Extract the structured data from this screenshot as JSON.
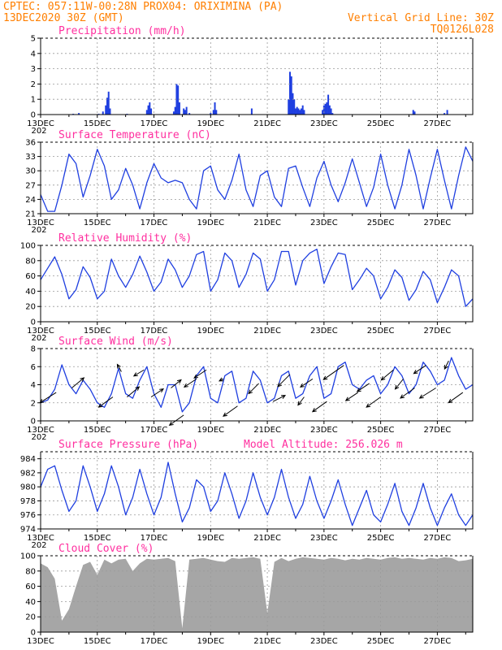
{
  "header": {
    "line1_left": "CPTEC:  057:11W-00:28N  PROX04: ORIXIMINA (PA)",
    "line2_left": "13DEC2020 30Z (GMT)",
    "line2_right": "Vertical Grid Line: 30Z",
    "line3_right": "TQ0126L028"
  },
  "x_axis": {
    "tick_labels": [
      "13DEC",
      "15DEC",
      "17DEC",
      "19DEC",
      "21DEC",
      "23DEC",
      "25DEC",
      "27DEC"
    ],
    "tick_days": [
      0,
      2,
      4,
      6,
      8,
      10,
      12,
      14
    ],
    "range_days": [
      0,
      15.25
    ],
    "year_fragment": "202"
  },
  "colors": {
    "series": "#1f3fe0",
    "bars": "#1f3fe0",
    "cloud": "#a6a6a6",
    "title": "#ff2f9f",
    "header": "#ff7f00"
  },
  "chart_data": [
    {
      "type": "bar",
      "title": "Precipitation (mm/h)",
      "ylim": [
        0,
        5
      ],
      "yticks": [
        0,
        1,
        2,
        3,
        4,
        5
      ],
      "grid": true,
      "values_by_day": [
        [
          1.15,
          0.05
        ],
        [
          1.35,
          0.1
        ],
        [
          2.05,
          0.05
        ],
        [
          2.2,
          0.2
        ],
        [
          2.3,
          0.6
        ],
        [
          2.35,
          1.1
        ],
        [
          2.4,
          1.5
        ],
        [
          2.45,
          0.4
        ],
        [
          3.05,
          0.05
        ],
        [
          3.75,
          0.3
        ],
        [
          3.8,
          0.6
        ],
        [
          3.85,
          0.8
        ],
        [
          3.9,
          0.4
        ],
        [
          4.7,
          0.2
        ],
        [
          4.75,
          0.5
        ],
        [
          4.8,
          2.0
        ],
        [
          4.85,
          1.9
        ],
        [
          4.9,
          0.8
        ],
        [
          5.05,
          0.4
        ],
        [
          5.1,
          0.3
        ],
        [
          5.15,
          0.5
        ],
        [
          5.25,
          0.1
        ],
        [
          6.0,
          0.1
        ],
        [
          6.1,
          0.3
        ],
        [
          6.15,
          0.8
        ],
        [
          6.2,
          0.3
        ],
        [
          7.45,
          0.4
        ],
        [
          8.75,
          1.0
        ],
        [
          8.8,
          2.8
        ],
        [
          8.85,
          2.5
        ],
        [
          8.9,
          1.4
        ],
        [
          8.95,
          1.0
        ],
        [
          9.0,
          0.4
        ],
        [
          9.05,
          0.5
        ],
        [
          9.1,
          0.4
        ],
        [
          9.15,
          0.3
        ],
        [
          9.2,
          0.4
        ],
        [
          9.25,
          0.6
        ],
        [
          9.3,
          0.3
        ],
        [
          9.95,
          0.3
        ],
        [
          10.0,
          0.6
        ],
        [
          10.05,
          0.7
        ],
        [
          10.1,
          0.8
        ],
        [
          10.15,
          1.3
        ],
        [
          10.2,
          0.6
        ],
        [
          10.25,
          0.4
        ],
        [
          10.3,
          0.1
        ],
        [
          13.15,
          0.3
        ],
        [
          13.2,
          0.2
        ],
        [
          14.25,
          0.1
        ],
        [
          14.35,
          0.3
        ]
      ]
    },
    {
      "type": "line",
      "title": "Surface Temperature (nC)",
      "ylim": [
        21,
        36
      ],
      "yticks": [
        21,
        24,
        27,
        30,
        33,
        36
      ],
      "grid": true,
      "x_days": [
        0,
        0.25,
        0.5,
        0.75,
        1,
        1.25,
        1.5,
        1.75,
        2,
        2.25,
        2.5,
        2.75,
        3,
        3.25,
        3.5,
        3.75,
        4,
        4.25,
        4.5,
        4.75,
        5,
        5.25,
        5.5,
        5.75,
        6,
        6.25,
        6.5,
        6.75,
        7,
        7.25,
        7.5,
        7.75,
        8,
        8.25,
        8.5,
        8.75,
        9,
        9.25,
        9.5,
        9.75,
        10,
        10.25,
        10.5,
        10.75,
        11,
        11.25,
        11.5,
        11.75,
        12,
        12.25,
        12.5,
        12.75,
        13,
        13.25,
        13.5,
        13.75,
        14,
        14.25,
        14.5,
        14.75,
        15,
        15.25
      ],
      "values": [
        25,
        21.5,
        21.5,
        27,
        33.5,
        31.5,
        24.5,
        29,
        34.5,
        31,
        24,
        26,
        30.5,
        27,
        22,
        27.5,
        31.5,
        28.5,
        27.5,
        28,
        27.5,
        24,
        22,
        30,
        31,
        26,
        24,
        28,
        33.5,
        26,
        22.5,
        29,
        30,
        24.5,
        22.5,
        30.5,
        31,
        26.5,
        22.5,
        28.5,
        32,
        27,
        23.5,
        27.5,
        32.5,
        27.5,
        22.5,
        26.5,
        33.5,
        27,
        22,
        27,
        34.5,
        29,
        22,
        28.5,
        34.5,
        28,
        22,
        29,
        35,
        32
      ]
    },
    {
      "type": "line",
      "title": "Relative Humidity (%)",
      "ylim": [
        0,
        100
      ],
      "yticks": [
        0,
        20,
        40,
        60,
        80,
        100
      ],
      "grid": true,
      "x_days": [
        0,
        0.25,
        0.5,
        0.75,
        1,
        1.25,
        1.5,
        1.75,
        2,
        2.25,
        2.5,
        2.75,
        3,
        3.25,
        3.5,
        3.75,
        4,
        4.25,
        4.5,
        4.75,
        5,
        5.25,
        5.5,
        5.75,
        6,
        6.25,
        6.5,
        6.75,
        7,
        7.25,
        7.5,
        7.75,
        8,
        8.25,
        8.5,
        8.75,
        9,
        9.25,
        9.5,
        9.75,
        10,
        10.25,
        10.5,
        10.75,
        11,
        11.25,
        11.5,
        11.75,
        12,
        12.25,
        12.5,
        12.75,
        13,
        13.25,
        13.5,
        13.75,
        14,
        14.25,
        14.5,
        14.75,
        15,
        15.25
      ],
      "values": [
        55,
        70,
        85,
        62,
        30,
        42,
        72,
        58,
        30,
        40,
        82,
        60,
        45,
        62,
        86,
        65,
        40,
        52,
        82,
        68,
        45,
        60,
        88,
        92,
        40,
        55,
        90,
        80,
        45,
        62,
        90,
        82,
        40,
        55,
        92,
        92,
        48,
        80,
        90,
        95,
        50,
        72,
        90,
        88,
        42,
        55,
        70,
        60,
        30,
        45,
        68,
        58,
        28,
        42,
        66,
        55,
        25,
        45,
        68,
        60,
        20,
        30
      ]
    },
    {
      "type": "line",
      "title": "Surface Wind (m/s)",
      "ylim": [
        0,
        8
      ],
      "yticks": [
        0,
        2,
        4,
        6,
        8
      ],
      "grid": true,
      "x_days": [
        0,
        0.25,
        0.5,
        0.75,
        1,
        1.25,
        1.5,
        1.75,
        2,
        2.25,
        2.5,
        2.75,
        3,
        3.25,
        3.5,
        3.75,
        4,
        4.25,
        4.5,
        4.75,
        5,
        5.25,
        5.5,
        5.75,
        6,
        6.25,
        6.5,
        6.75,
        7,
        7.25,
        7.5,
        7.75,
        8,
        8.25,
        8.5,
        8.75,
        9,
        9.25,
        9.5,
        9.75,
        10,
        10.25,
        10.5,
        10.75,
        11,
        11.25,
        11.5,
        11.75,
        12,
        12.25,
        12.5,
        12.75,
        13,
        13.25,
        13.5,
        13.75,
        14,
        14.25,
        14.5,
        14.75,
        15,
        15.25
      ],
      "values": [
        2,
        2.3,
        3.5,
        6.2,
        4,
        3,
        4.5,
        3.5,
        2,
        1.5,
        3,
        5.8,
        3,
        2.5,
        4.5,
        6,
        3,
        1.5,
        4,
        4,
        1,
        2,
        5,
        6,
        2.5,
        2,
        5,
        5.5,
        2,
        2.5,
        5.5,
        4.5,
        2,
        2.5,
        5,
        5.5,
        2.5,
        3,
        5,
        6,
        2.5,
        3,
        6,
        6.5,
        4,
        3.5,
        4.5,
        5,
        3,
        4,
        6,
        5,
        3,
        4,
        6.5,
        5.5,
        4,
        4.5,
        7,
        5,
        3.5,
        4
      ],
      "arrows_days": [
        0.55,
        1.1,
        2.55,
        2.85,
        3.05,
        3.65,
        3.9,
        4.6,
        5.05,
        5.5,
        5.85,
        6.45,
        6.95,
        7.7,
        8.2,
        8.8,
        9.3,
        9.6,
        10.1,
        10.7,
        11.2,
        11.6,
        12.0,
        12.45,
        12.8,
        13.2,
        13.6,
        13.95,
        14.4,
        14.9
      ],
      "arrows": [
        [
          -4,
          -2.5
        ],
        [
          3,
          2.5
        ],
        [
          -3.5,
          -2.5
        ],
        [
          -1,
          1.8
        ],
        [
          3,
          2.5
        ],
        [
          -2.5,
          -1.5
        ],
        [
          3,
          2
        ],
        [
          2.5,
          2
        ],
        [
          -3.5,
          -2.5
        ],
        [
          -3,
          -2
        ],
        [
          -3,
          -2
        ],
        [
          -1,
          -0.5
        ],
        [
          -3.5,
          -2.5
        ],
        [
          -2.5,
          -2.5
        ],
        [
          3,
          1.5
        ],
        [
          -3,
          -3
        ],
        [
          -1.5,
          -2
        ],
        [
          -3,
          -2
        ],
        [
          -3.5,
          -2.5
        ],
        [
          -5,
          -3.5
        ],
        [
          -3,
          -2
        ],
        [
          -3,
          -2
        ],
        [
          -3.5,
          -2.5
        ],
        [
          -3,
          -2.5
        ],
        [
          -2,
          -2.5
        ],
        [
          -3.5,
          -2.5
        ],
        [
          -3,
          -2
        ],
        [
          -4,
          -2.5
        ],
        [
          -1,
          -2
        ],
        [
          -3.5,
          -2.5
        ]
      ]
    },
    {
      "type": "line",
      "title": "Surface Pressure (hPa)",
      "annotation": "Model Altitude: 256.026 m",
      "ylim": [
        974,
        985
      ],
      "yticks": [
        974,
        976,
        978,
        980,
        982,
        984
      ],
      "grid": true,
      "x_days": [
        0,
        0.25,
        0.5,
        0.75,
        1,
        1.25,
        1.5,
        1.75,
        2,
        2.25,
        2.5,
        2.75,
        3,
        3.25,
        3.5,
        3.75,
        4,
        4.25,
        4.5,
        4.75,
        5,
        5.25,
        5.5,
        5.75,
        6,
        6.25,
        6.5,
        6.75,
        7,
        7.25,
        7.5,
        7.75,
        8,
        8.25,
        8.5,
        8.75,
        9,
        9.25,
        9.5,
        9.75,
        10,
        10.25,
        10.5,
        10.75,
        11,
        11.25,
        11.5,
        11.75,
        12,
        12.25,
        12.5,
        12.75,
        13,
        13.25,
        13.5,
        13.75,
        14,
        14.25,
        14.5,
        14.75,
        15,
        15.25
      ],
      "values": [
        980,
        982.5,
        983,
        979.5,
        976.5,
        978,
        983,
        980,
        976.5,
        979,
        983,
        980,
        976,
        978.5,
        982.5,
        979,
        976,
        978.5,
        983.5,
        979,
        975,
        977,
        981,
        980,
        976.5,
        978,
        982,
        979,
        975.5,
        978,
        982,
        978.5,
        976,
        978.5,
        982.5,
        978.5,
        975.5,
        977.5,
        981.5,
        978,
        975.5,
        978,
        981,
        977.5,
        974.5,
        977,
        979.5,
        976,
        975,
        977.5,
        980.5,
        976.5,
        974.5,
        977,
        980.5,
        977,
        974.5,
        977,
        979,
        976,
        974.5,
        976
      ]
    },
    {
      "type": "area",
      "title": "Cloud Cover (%)",
      "ylim": [
        0,
        100
      ],
      "yticks": [
        0,
        20,
        40,
        60,
        80,
        100
      ],
      "grid": true,
      "x_days": [
        0,
        0.25,
        0.5,
        0.75,
        1,
        1.25,
        1.5,
        1.75,
        2,
        2.25,
        2.5,
        2.75,
        3,
        3.25,
        3.5,
        3.75,
        4,
        4.25,
        4.5,
        4.75,
        5,
        5.25,
        5.5,
        5.75,
        6,
        6.25,
        6.5,
        6.75,
        7,
        7.25,
        7.5,
        7.75,
        8,
        8.25,
        8.5,
        8.75,
        9,
        9.25,
        9.5,
        9.75,
        10,
        10.25,
        10.5,
        10.75,
        11,
        11.25,
        11.5,
        11.75,
        12,
        12.25,
        12.5,
        12.75,
        13,
        13.25,
        13.5,
        13.75,
        14,
        14.25,
        14.5,
        14.75,
        15,
        15.25
      ],
      "values": [
        90,
        85,
        70,
        15,
        30,
        60,
        88,
        92,
        75,
        95,
        90,
        95,
        96,
        80,
        90,
        96,
        95,
        96,
        97,
        93,
        5,
        95,
        96,
        97,
        95,
        93,
        92,
        97,
        96,
        97,
        98,
        96,
        25,
        92,
        97,
        93,
        96,
        98,
        97,
        96,
        95,
        97,
        96,
        94,
        96,
        95,
        97,
        96,
        95,
        97,
        98,
        96,
        97,
        96,
        95,
        97,
        96,
        98,
        97,
        93,
        94,
        96
      ]
    }
  ]
}
